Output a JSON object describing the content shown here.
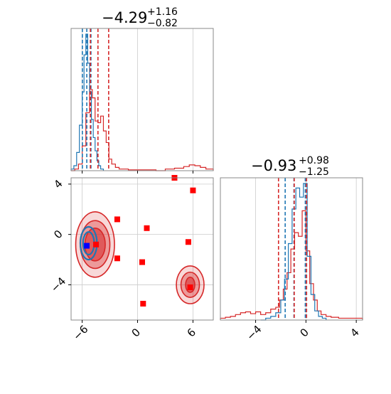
{
  "colors": {
    "red": "#d62728",
    "blue": "#1f77b4",
    "marker_red": "#ff0000",
    "marker_blue": "#0000ff",
    "grid": "#cccccc"
  },
  "titles": {
    "p1": {
      "main": "−4.29",
      "sup": "+1.16",
      "sub": "−0.82"
    },
    "p2": {
      "main": "−0.93",
      "sup": "+0.98",
      "sub": "−1.25"
    }
  },
  "chart_data": [
    {
      "type": "histogram",
      "panel": "marginal parameter 1",
      "title": "-4.29 +1.16 -0.82",
      "x_range": [
        -7.2,
        8.2
      ],
      "grid": true,
      "series": [
        {
          "color": "red",
          "style": "step",
          "bins": [
            [
              -7.2,
              0
            ],
            [
              -6.8,
              2
            ],
            [
              -6.4,
              8
            ],
            [
              -6.0,
              30
            ],
            [
              -5.6,
              70
            ],
            [
              -5.2,
              98
            ],
            [
              -4.9,
              88
            ],
            [
              -4.6,
              60
            ],
            [
              -4.3,
              58
            ],
            [
              -4.0,
              66
            ],
            [
              -3.7,
              48
            ],
            [
              -3.4,
              34
            ],
            [
              -3.1,
              14
            ],
            [
              -2.8,
              8
            ],
            [
              -2.4,
              4
            ],
            [
              -2.0,
              2
            ],
            [
              -1.0,
              1
            ],
            [
              0,
              1
            ],
            [
              1,
              1
            ],
            [
              2,
              0
            ],
            [
              3,
              2
            ],
            [
              4,
              3
            ],
            [
              5,
              5
            ],
            [
              5.6,
              7
            ],
            [
              6.2,
              6
            ],
            [
              6.8,
              4
            ],
            [
              7.4,
              2
            ],
            [
              8.2,
              0
            ]
          ]
        },
        {
          "color": "blue",
          "style": "step",
          "bins": [
            [
              -7.2,
              2
            ],
            [
              -6.9,
              6
            ],
            [
              -6.6,
              22
            ],
            [
              -6.3,
              55
            ],
            [
              -6.0,
              95
            ],
            [
              -5.8,
              140
            ],
            [
              -5.6,
              165
            ],
            [
              -5.4,
              130
            ],
            [
              -5.2,
              95
            ],
            [
              -5.0,
              62
            ],
            [
              -4.8,
              40
            ],
            [
              -4.6,
              24
            ],
            [
              -4.4,
              12
            ],
            [
              -4.2,
              6
            ],
            [
              -4.0,
              2
            ],
            [
              -3.7,
              0
            ]
          ]
        }
      ],
      "quantile_lines": [
        {
          "color": "blue",
          "x": [
            -5.98,
            -5.5,
            -5.05
          ]
        },
        {
          "color": "red",
          "x": [
            -5.11,
            -4.29,
            -3.13
          ]
        }
      ]
    },
    {
      "type": "scatter",
      "panel": "2D joint density",
      "x_range": [
        -7.2,
        8.2
      ],
      "y_range": [
        -6.8,
        4.5
      ],
      "xticks": [
        "−6",
        "0",
        "6"
      ],
      "yticks": [
        "−4",
        "0",
        "4"
      ],
      "grid": true,
      "red_markers": [
        [
          4.0,
          4.5
        ],
        [
          6.0,
          3.5
        ],
        [
          -2.2,
          1.2
        ],
        [
          1.0,
          0.5
        ],
        [
          -4.5,
          -0.8
        ],
        [
          -2.2,
          -1.9
        ],
        [
          5.5,
          -0.6
        ],
        [
          0.5,
          -2.2
        ],
        [
          5.7,
          -4.2
        ],
        [
          0.6,
          -5.5
        ]
      ],
      "blue_markers": [
        [
          -5.5,
          -0.9
        ]
      ],
      "density_regions": [
        {
          "color": "red",
          "center": [
            -4.6,
            -0.8
          ],
          "rx": [
            2.1,
            1.6,
            1.1
          ],
          "ry": [
            2.6,
            1.9,
            1.3
          ]
        },
        {
          "color": "red",
          "center": [
            5.7,
            -4.0
          ],
          "rx": [
            1.5,
            1.0,
            0.5
          ],
          "ry": [
            1.5,
            1.0,
            0.6
          ]
        },
        {
          "color": "blue",
          "center": [
            -5.3,
            -0.7
          ],
          "rx": [
            0.9,
            0.6
          ],
          "ry": [
            1.3,
            0.9
          ]
        }
      ]
    },
    {
      "type": "histogram",
      "panel": "marginal parameter 2",
      "title": "-0.93 +0.98 -1.25",
      "x_range": [
        -6.8,
        4.5
      ],
      "xticks": [
        "−4",
        "0",
        "4"
      ],
      "grid": true,
      "series": [
        {
          "color": "red",
          "style": "step",
          "bins": [
            [
              -6.8,
              2
            ],
            [
              -6.4,
              3
            ],
            [
              -6.0,
              4
            ],
            [
              -5.6,
              6
            ],
            [
              -5.2,
              8
            ],
            [
              -4.8,
              9
            ],
            [
              -4.4,
              7
            ],
            [
              -4.0,
              9
            ],
            [
              -3.6,
              6
            ],
            [
              -3.2,
              8
            ],
            [
              -2.8,
              12
            ],
            [
              -2.4,
              14
            ],
            [
              -2.1,
              22
            ],
            [
              -1.8,
              34
            ],
            [
              -1.5,
              52
            ],
            [
              -1.2,
              78
            ],
            [
              -0.9,
              96
            ],
            [
              -0.6,
              92
            ],
            [
              -0.3,
              120
            ],
            [
              0,
              76
            ],
            [
              0.3,
              40
            ],
            [
              0.6,
              22
            ],
            [
              0.9,
              10
            ],
            [
              1.2,
              6
            ],
            [
              1.6,
              4
            ],
            [
              2.0,
              3
            ],
            [
              2.6,
              2
            ],
            [
              3.4,
              2
            ],
            [
              4.5,
              0
            ]
          ]
        },
        {
          "color": "blue",
          "style": "step",
          "bins": [
            [
              -3.6,
              0
            ],
            [
              -3.2,
              2
            ],
            [
              -2.8,
              4
            ],
            [
              -2.4,
              8
            ],
            [
              -2.0,
              22
            ],
            [
              -1.7,
              45
            ],
            [
              -1.4,
              84
            ],
            [
              -1.1,
              122
            ],
            [
              -0.8,
              145
            ],
            [
              -0.5,
              135
            ],
            [
              -0.2,
              150
            ],
            [
              0.1,
              70
            ],
            [
              0.4,
              28
            ],
            [
              0.7,
              10
            ],
            [
              1.0,
              4
            ],
            [
              1.3,
              2
            ],
            [
              1.6,
              0
            ]
          ]
        }
      ],
      "quantile_lines": [
        {
          "color": "blue",
          "x": [
            -1.65,
            -0.95,
            -0.05
          ]
        },
        {
          "color": "red",
          "x": [
            -2.18,
            -0.93,
            0.05
          ]
        }
      ]
    }
  ]
}
